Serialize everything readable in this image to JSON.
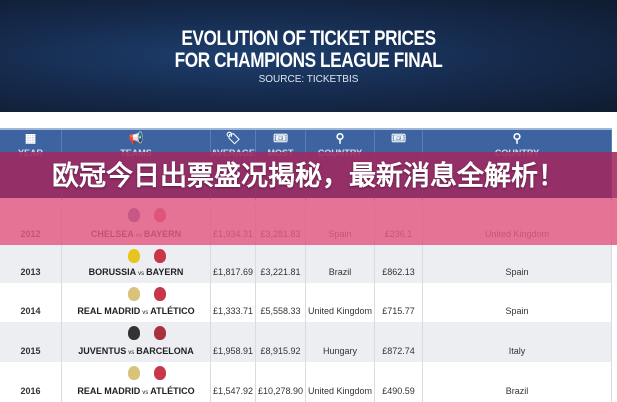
{
  "banner": {
    "title_line1": "EVOLUTION OF TICKET PRICES",
    "title_line2": "FOR CHAMPIONS LEAGUE FINAL",
    "source": "SOURCE: TICKETBIS"
  },
  "table": {
    "headers": [
      {
        "label": "YEAR",
        "icon": "calendar-icon"
      },
      {
        "label": "TEAMS",
        "icon": "whistle-icon"
      },
      {
        "label": "AVERAGE",
        "icon": "price-tag-icon"
      },
      {
        "label": "MOST",
        "icon": "tickets-icon"
      },
      {
        "label": "COUNTRY",
        "icon": "location-pin-icon"
      },
      {
        "label": "",
        "icon": "tickets-icon"
      },
      {
        "label": "COUNTRY",
        "icon": "location-pin-icon"
      }
    ],
    "rows": [
      {
        "year": "2012",
        "team1": "CHELSEA",
        "vs": "vs",
        "team2": "BAYERN",
        "avg": "£1,934.31",
        "most": "£3,281.83",
        "country1": "Spain",
        "cheap": "£236.1",
        "country2": "United Kingdom",
        "c1": "#2a4a9a",
        "c2": "#c8364a"
      },
      {
        "year": "2013",
        "team1": "BORUSSIA",
        "vs": "vs",
        "team2": "BAYERN",
        "avg": "£1,817.69",
        "most": "£3,221.81",
        "country1": "Brazil",
        "cheap": "£862.13",
        "country2": "Spain",
        "c1": "#e7c51c",
        "c2": "#c8364a"
      },
      {
        "year": "2014",
        "team1": "REAL MADRID",
        "vs": "vs",
        "team2": "ATLÉTICO",
        "avg": "£1,333.71",
        "most": "£5,558.33",
        "country1": "United Kingdom",
        "cheap": "£715.77",
        "country2": "Spain",
        "c1": "#d9c27a",
        "c2": "#c8364a"
      },
      {
        "year": "2015",
        "team1": "JUVENTUS",
        "vs": "vs",
        "team2": "BARCELONA",
        "avg": "£1,958.91",
        "most": "£8,915.92",
        "country1": "Hungary",
        "cheap": "£872.74",
        "country2": "Italy",
        "c1": "#333333",
        "c2": "#a8323c"
      },
      {
        "year": "2016",
        "team1": "REAL MADRID",
        "vs": "vs",
        "team2": "ATLÉTICO",
        "avg": "£1,547.92",
        "most": "£10,278.90",
        "country1": "United Kingdom",
        "cheap": "£490.59",
        "country2": "Brazil",
        "c1": "#d9c27a",
        "c2": "#c8364a"
      }
    ]
  },
  "overlay": {
    "headline": "欧冠今日出票盛况揭秘，最新消息全解析！"
  }
}
